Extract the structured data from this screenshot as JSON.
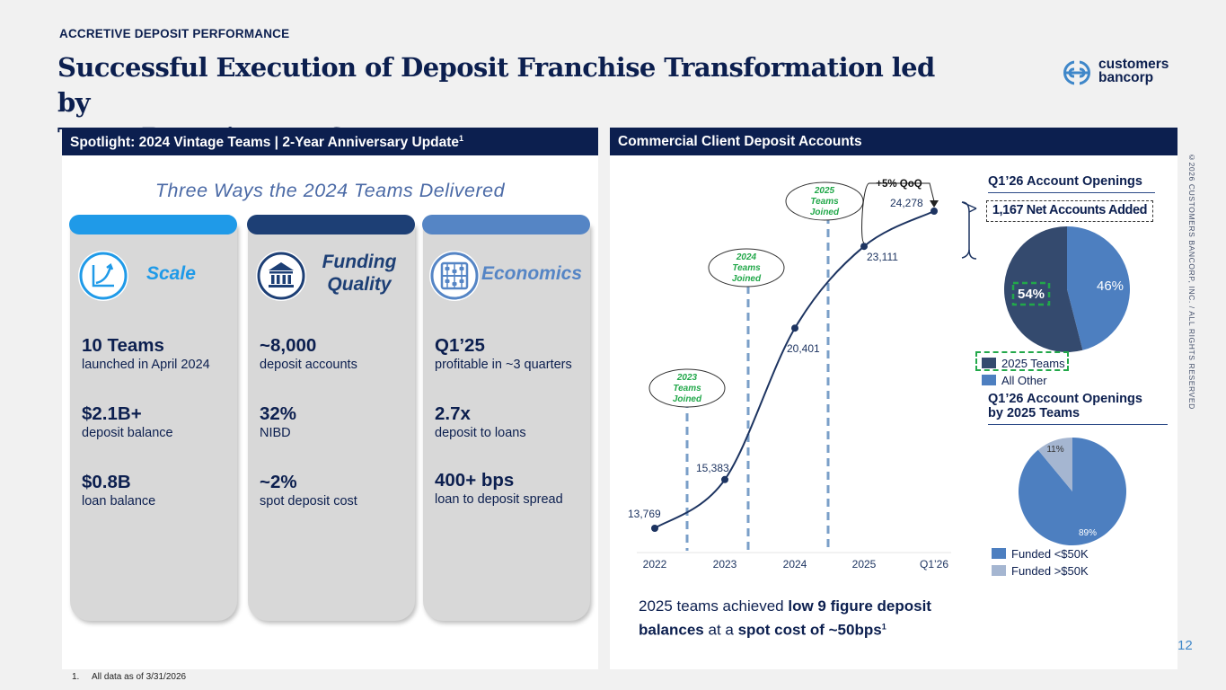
{
  "eyebrow": "ACCRETIVE DEPOSIT PERFORMANCE",
  "title_line1": "Successful Execution of Deposit Franchise Transformation led by",
  "title_line2": "Team Recruitment Strategy",
  "logo": {
    "line1": "customers",
    "line2": "bancorp",
    "icon": "customers-bancorp-logo-icon"
  },
  "left_panel": {
    "header": "Spotlight: 2024 Vintage Teams | 2-Year Anniversary Update",
    "header_sup": "1",
    "subheading": "Three Ways the 2024 Teams Delivered",
    "pillars": [
      {
        "name": "Scale",
        "icon": "growth-chart-icon",
        "tab_color": "#1f9ae8",
        "name_color": "#1f9ae8",
        "metrics": [
          {
            "big": "10 Teams",
            "small": "launched in April 2024"
          },
          {
            "big": "$2.1B+",
            "small": "deposit balance"
          },
          {
            "big": "$0.8B",
            "small": "loan balance"
          }
        ]
      },
      {
        "name_line1": "Funding",
        "name_line2": "Quality",
        "icon": "bank-building-icon",
        "tab_color": "#1d3f75",
        "name_color": "#1d3f75",
        "metrics": [
          {
            "big": "~8,000",
            "small": "deposit accounts"
          },
          {
            "big": "32%",
            "small": "NIBD"
          },
          {
            "big": "~2%",
            "small": "spot deposit cost"
          }
        ]
      },
      {
        "name": "Economics",
        "icon": "abacus-icon",
        "tab_color": "#5585c5",
        "name_color": "#5585c5",
        "metrics": [
          {
            "big": "Q1’25",
            "small": "profitable in ~3 quarters"
          },
          {
            "big": "2.7x",
            "small": "deposit to loans"
          },
          {
            "big": "400+ bps",
            "small": "loan to deposit spread"
          }
        ]
      }
    ]
  },
  "right_panel": {
    "header": "Commercial Client Deposit Accounts",
    "callout": {
      "part1": "2025 teams achieved ",
      "bold1": "low 9 figure deposit balances",
      "part2": " at a ",
      "bold2": "spot cost of ~50bps",
      "sup": "1"
    }
  },
  "chart_data": [
    {
      "type": "line",
      "x": [
        "2022",
        "2023",
        "2024",
        "2025",
        "Q1’26"
      ],
      "values": [
        13769,
        15383,
        20401,
        23111,
        24278
      ],
      "data_labels": [
        "13,769",
        "15,383",
        "20,401",
        "23,111",
        "24,278"
      ],
      "series_color": "#1d3461",
      "annotations": {
        "qoq": "+5% QoQ",
        "team_joins": [
          {
            "line1": "2023",
            "line2": "Teams",
            "line3": "Joined"
          },
          {
            "line1": "2024",
            "line2": "Teams",
            "line3": "Joined"
          },
          {
            "line1": "2025",
            "line2": "Teams",
            "line3": "Joined"
          }
        ],
        "annotation_color": "#22a84a",
        "marker_color": "#7a9fc8"
      },
      "grid": false
    },
    {
      "type": "pie",
      "title": "Q1’26 Account Openings",
      "banner": "1,167 Net Accounts Added",
      "slices": [
        {
          "name": "2025 Teams",
          "value": 54,
          "label": "54%",
          "color": "#344a6e"
        },
        {
          "name": "All Other",
          "value": 46,
          "label": "46%",
          "color": "#4d7fc0"
        }
      ],
      "legend": "bottom-left"
    },
    {
      "type": "pie",
      "title_line1": "Q1’26 Account Openings",
      "title_line2": "by 2025 Teams",
      "slices": [
        {
          "name": "Funded <$50K",
          "value": 89,
          "label": "89%",
          "color": "#4d7fc0"
        },
        {
          "name": "Funded >$50K",
          "value": 11,
          "label": "11%",
          "color": "#a5b6d1"
        }
      ],
      "legend": "bottom-left"
    }
  ],
  "footnote": {
    "num": "1.",
    "text": "All data as of 3/31/2026"
  },
  "copyright": "©2026 CUSTOMERS BANCORP, INC. / ALL RIGHTS RESERVED",
  "page_number": "12"
}
